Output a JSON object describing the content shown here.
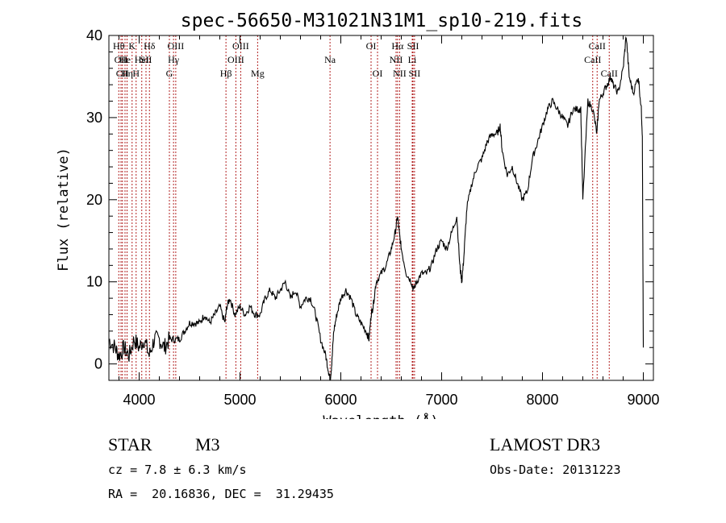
{
  "chart_data": {
    "type": "line",
    "title": "spec-56650-M31021N31M1_sp10-219.fits",
    "xlabel": "Wavelength (Å)",
    "ylabel": "Flux (relative)",
    "xlim": [
      3700,
      9100
    ],
    "ylim": [
      -2,
      40
    ],
    "xticks": [
      4000,
      5000,
      6000,
      7000,
      8000,
      9000
    ],
    "yticks": [
      0,
      10,
      20,
      30,
      40
    ],
    "grid": false,
    "series": [
      {
        "x": [
          3700,
          3760,
          3800,
          3850,
          3900,
          3950,
          4000,
          4050,
          4100,
          4150,
          4200,
          4250,
          4300,
          4350,
          4400,
          4450,
          4500,
          4550,
          4600,
          4650,
          4700,
          4750,
          4800,
          4850,
          4870,
          4900,
          4950,
          5000,
          5050,
          5100,
          5150,
          5200,
          5250,
          5300,
          5350,
          5400,
          5450,
          5500,
          5550,
          5600,
          5650,
          5700,
          5750,
          5800,
          5850,
          5880,
          5895,
          5910,
          5930,
          5960,
          6000,
          6050,
          6100,
          6150,
          6200,
          6250,
          6280,
          6300,
          6320,
          6350,
          6400,
          6450,
          6500,
          6540,
          6563,
          6580,
          6600,
          6650,
          6700,
          6720,
          6750,
          6800,
          6850,
          6900,
          6950,
          7000,
          7050,
          7100,
          7150,
          7180,
          7200,
          7220,
          7250,
          7300,
          7350,
          7400,
          7450,
          7500,
          7550,
          7580,
          7600,
          7650,
          7700,
          7750,
          7800,
          7850,
          7900,
          7950,
          8000,
          8050,
          8100,
          8150,
          8200,
          8250,
          8300,
          8350,
          8380,
          8400,
          8450,
          8500,
          8540,
          8560,
          8600,
          8640,
          8680,
          8700,
          8750,
          8800,
          8830,
          8860,
          8900,
          8950,
          8980,
          8990,
          9000
        ],
        "y": [
          3,
          2,
          1,
          2,
          1,
          3,
          2,
          3,
          1,
          3,
          3,
          2,
          3,
          3,
          3,
          4,
          5,
          5,
          5,
          6,
          5,
          6,
          7,
          5,
          7,
          8,
          6,
          7,
          6,
          7,
          6,
          6,
          8,
          9,
          8,
          9,
          10,
          8,
          9,
          7,
          8,
          8,
          6,
          3,
          1,
          -1,
          -2,
          0,
          4,
          6,
          8,
          9,
          8,
          6,
          5,
          4,
          3,
          6,
          7,
          10,
          11,
          12,
          14,
          16,
          18,
          16,
          14,
          11,
          10,
          9,
          10,
          11,
          11,
          12,
          14,
          15,
          14,
          16,
          18,
          12,
          10,
          13,
          19,
          22,
          24,
          25,
          27,
          28,
          28,
          29,
          26,
          23,
          24,
          22,
          20,
          21,
          25,
          27,
          29,
          31,
          32,
          31,
          30,
          29,
          31,
          31,
          31,
          20,
          32,
          31,
          28,
          32,
          33,
          34,
          35,
          34,
          33,
          36,
          40,
          35,
          33,
          35,
          31,
          28,
          2
        ]
      }
    ],
    "lines": [
      {
        "x": 3798,
        "label": "Hθ",
        "row": 1
      },
      {
        "x": 3820,
        "label": "OII",
        "row": 2
      },
      {
        "x": 3834,
        "label": "CII",
        "row": 3
      },
      {
        "x": 3860,
        "label": "He",
        "row": 2
      },
      {
        "x": 3880,
        "label": "Hη",
        "row": 3
      },
      {
        "x": 3930,
        "label": "K",
        "row": 1
      },
      {
        "x": 3970,
        "label": "H",
        "row": 3
      },
      {
        "x": 4026,
        "label": "HeI",
        "row": 2
      },
      {
        "x": 4068,
        "label": "SII",
        "row": 2
      },
      {
        "x": 4102,
        "label": "Hδ",
        "row": 1
      },
      {
        "x": 4300,
        "label": "G",
        "row": 3
      },
      {
        "x": 4341,
        "label": "Hγ",
        "row": 2
      },
      {
        "x": 4363,
        "label": "OIII",
        "row": 1
      },
      {
        "x": 4861,
        "label": "Hβ",
        "row": 3
      },
      {
        "x": 4959,
        "label": "OIII",
        "row": 2
      },
      {
        "x": 5007,
        "label": "OIII",
        "row": 1
      },
      {
        "x": 5175,
        "label": "Mg",
        "row": 3
      },
      {
        "x": 5893,
        "label": "Na",
        "row": 2
      },
      {
        "x": 6300,
        "label": "OI",
        "row": 1
      },
      {
        "x": 6364,
        "label": "OI",
        "row": 3
      },
      {
        "x": 6548,
        "label": "NII",
        "row": 2
      },
      {
        "x": 6563,
        "label": "Hα",
        "row": 1
      },
      {
        "x": 6583,
        "label": "NII",
        "row": 3
      },
      {
        "x": 6708,
        "label": "Li",
        "row": 2
      },
      {
        "x": 6716,
        "label": "SII",
        "row": 1
      },
      {
        "x": 6731,
        "label": "SII",
        "row": 3
      },
      {
        "x": 8498,
        "label": "CaII",
        "row": 2
      },
      {
        "x": 8542,
        "label": "CaII",
        "row": 1
      },
      {
        "x": 8662,
        "label": "CaII",
        "row": 3
      }
    ]
  },
  "info": {
    "class": "STAR",
    "subclass": "M3",
    "survey": "LAMOST DR3",
    "cz": "cz = 7.8 ± 6.3 km/s",
    "obs_date": "Obs-Date: 20131223",
    "coords": "RA =  20.16836, DEC =  31.29435"
  },
  "colors": {
    "spectrum": "#000000",
    "line_markers": "#b22222",
    "axes": "#000000"
  }
}
